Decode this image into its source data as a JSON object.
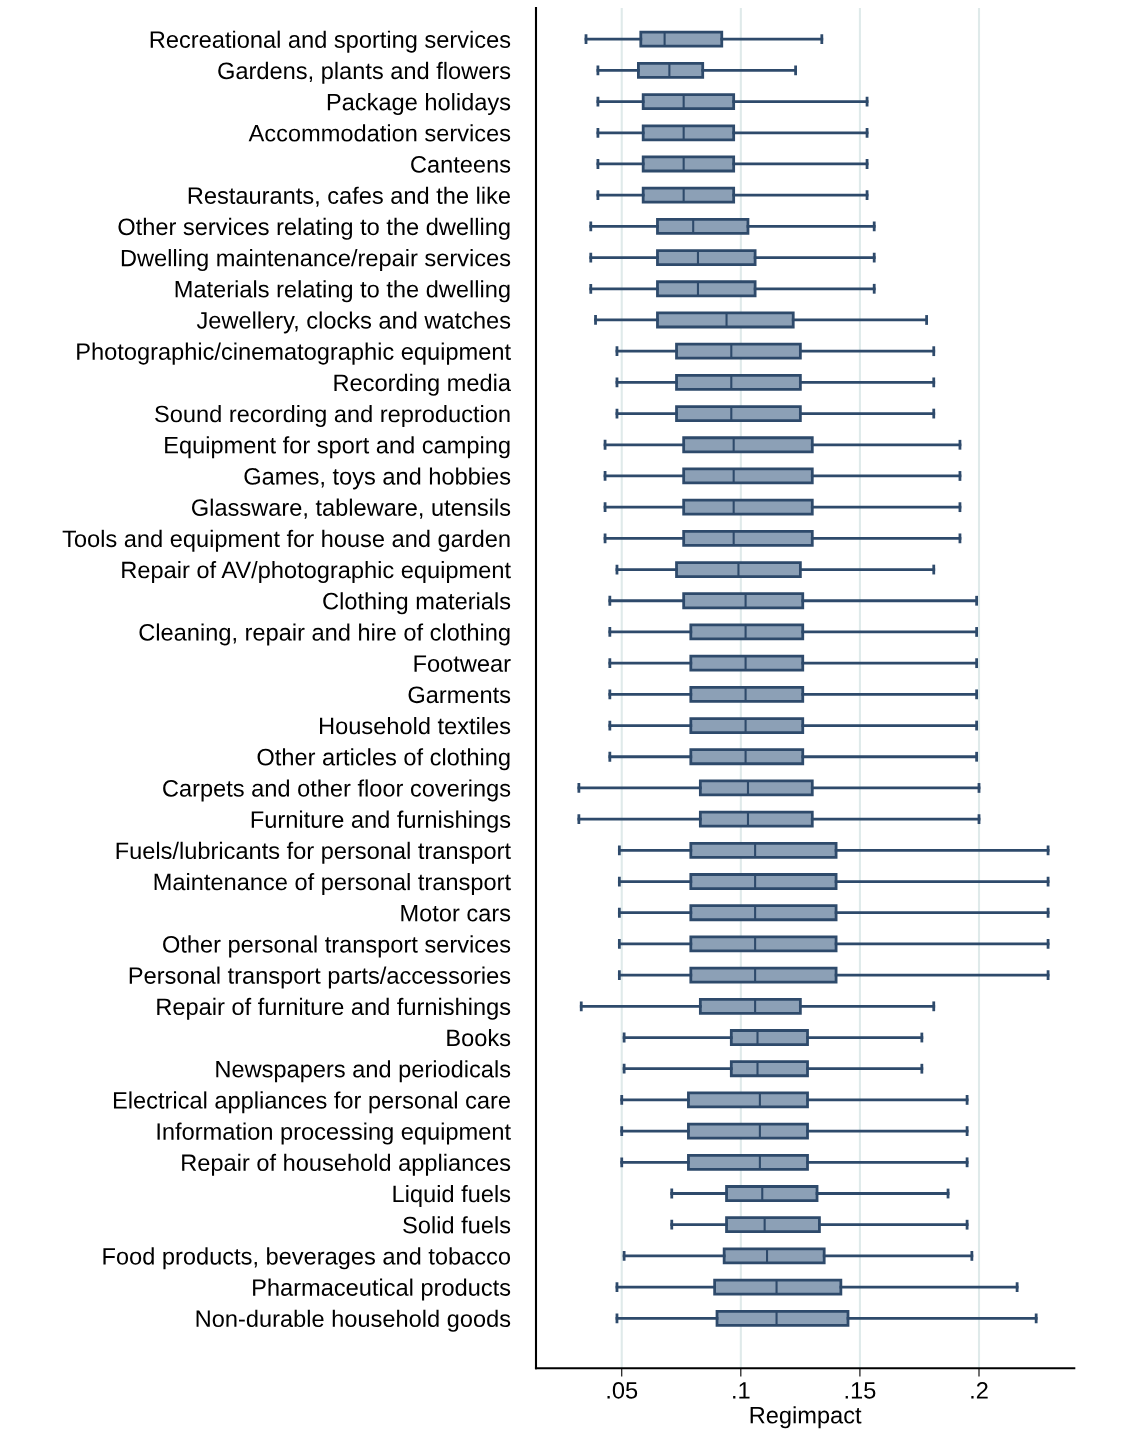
{
  "chart_data": {
    "type": "box",
    "orientation": "horizontal",
    "xlabel": "Regimpact",
    "categories": [
      "Recreational and sporting services",
      "Gardens, plants and flowers",
      "Package holidays",
      "Accommodation services",
      "Canteens",
      "Restaurants, cafes and the like",
      "Other services relating to the dwelling",
      "Dwelling maintenance/repair services",
      "Materials relating to the dwelling",
      "Jewellery, clocks and watches",
      "Photographic/cinematographic equipment",
      "Recording media",
      "Sound recording and reproduction",
      "Equipment for sport and camping",
      "Games, toys and hobbies",
      "Glassware, tableware, utensils",
      "Tools and equipment for house and garden",
      "Repair of AV/photographic equipment",
      "Clothing materials",
      "Cleaning, repair and hire of clothing",
      "Footwear",
      "Garments",
      "Household textiles",
      "Other articles of clothing",
      "Carpets and other floor coverings",
      "Furniture and furnishings",
      "Fuels/lubricants for personal transport",
      "Maintenance of personal transport",
      "Motor cars",
      "Other personal transport services",
      "Personal transport parts/accessories",
      "Repair of furniture and furnishings",
      "Books",
      "Newspapers and periodicals",
      "Electrical appliances for personal care",
      "Information processing equipment",
      "Repair of household appliances",
      "Liquid fuels",
      "Solid fuels",
      "Food products, beverages and tobacco",
      "Pharmaceutical products",
      "Non-durable household goods"
    ],
    "boxes": [
      {
        "low": 0.035,
        "q1": 0.058,
        "median": 0.068,
        "q3": 0.092,
        "high": 0.134
      },
      {
        "low": 0.04,
        "q1": 0.057,
        "median": 0.07,
        "q3": 0.084,
        "high": 0.123
      },
      {
        "low": 0.04,
        "q1": 0.059,
        "median": 0.076,
        "q3": 0.097,
        "high": 0.153
      },
      {
        "low": 0.04,
        "q1": 0.059,
        "median": 0.076,
        "q3": 0.097,
        "high": 0.153
      },
      {
        "low": 0.04,
        "q1": 0.059,
        "median": 0.076,
        "q3": 0.097,
        "high": 0.153
      },
      {
        "low": 0.04,
        "q1": 0.059,
        "median": 0.076,
        "q3": 0.097,
        "high": 0.153
      },
      {
        "low": 0.037,
        "q1": 0.065,
        "median": 0.08,
        "q3": 0.103,
        "high": 0.156
      },
      {
        "low": 0.037,
        "q1": 0.065,
        "median": 0.082,
        "q3": 0.106,
        "high": 0.156
      },
      {
        "low": 0.037,
        "q1": 0.065,
        "median": 0.082,
        "q3": 0.106,
        "high": 0.156
      },
      {
        "low": 0.039,
        "q1": 0.065,
        "median": 0.094,
        "q3": 0.122,
        "high": 0.178
      },
      {
        "low": 0.048,
        "q1": 0.073,
        "median": 0.096,
        "q3": 0.125,
        "high": 0.181
      },
      {
        "low": 0.048,
        "q1": 0.073,
        "median": 0.096,
        "q3": 0.125,
        "high": 0.181
      },
      {
        "low": 0.048,
        "q1": 0.073,
        "median": 0.096,
        "q3": 0.125,
        "high": 0.181
      },
      {
        "low": 0.043,
        "q1": 0.076,
        "median": 0.097,
        "q3": 0.13,
        "high": 0.192
      },
      {
        "low": 0.043,
        "q1": 0.076,
        "median": 0.097,
        "q3": 0.13,
        "high": 0.192
      },
      {
        "low": 0.043,
        "q1": 0.076,
        "median": 0.097,
        "q3": 0.13,
        "high": 0.192
      },
      {
        "low": 0.043,
        "q1": 0.076,
        "median": 0.097,
        "q3": 0.13,
        "high": 0.192
      },
      {
        "low": 0.048,
        "q1": 0.073,
        "median": 0.099,
        "q3": 0.125,
        "high": 0.181
      },
      {
        "low": 0.045,
        "q1": 0.076,
        "median": 0.102,
        "q3": 0.126,
        "high": 0.199
      },
      {
        "low": 0.045,
        "q1": 0.079,
        "median": 0.102,
        "q3": 0.126,
        "high": 0.199
      },
      {
        "low": 0.045,
        "q1": 0.079,
        "median": 0.102,
        "q3": 0.126,
        "high": 0.199
      },
      {
        "low": 0.045,
        "q1": 0.079,
        "median": 0.102,
        "q3": 0.126,
        "high": 0.199
      },
      {
        "low": 0.045,
        "q1": 0.079,
        "median": 0.102,
        "q3": 0.126,
        "high": 0.199
      },
      {
        "low": 0.045,
        "q1": 0.079,
        "median": 0.102,
        "q3": 0.126,
        "high": 0.199
      },
      {
        "low": 0.032,
        "q1": 0.083,
        "median": 0.103,
        "q3": 0.13,
        "high": 0.2
      },
      {
        "low": 0.032,
        "q1": 0.083,
        "median": 0.103,
        "q3": 0.13,
        "high": 0.2
      },
      {
        "low": 0.049,
        "q1": 0.079,
        "median": 0.106,
        "q3": 0.14,
        "high": 0.229
      },
      {
        "low": 0.049,
        "q1": 0.079,
        "median": 0.106,
        "q3": 0.14,
        "high": 0.229
      },
      {
        "low": 0.049,
        "q1": 0.079,
        "median": 0.106,
        "q3": 0.14,
        "high": 0.229
      },
      {
        "low": 0.049,
        "q1": 0.079,
        "median": 0.106,
        "q3": 0.14,
        "high": 0.229
      },
      {
        "low": 0.049,
        "q1": 0.079,
        "median": 0.106,
        "q3": 0.14,
        "high": 0.229
      },
      {
        "low": 0.033,
        "q1": 0.083,
        "median": 0.106,
        "q3": 0.125,
        "high": 0.181
      },
      {
        "low": 0.051,
        "q1": 0.096,
        "median": 0.107,
        "q3": 0.128,
        "high": 0.176
      },
      {
        "low": 0.051,
        "q1": 0.096,
        "median": 0.107,
        "q3": 0.128,
        "high": 0.176
      },
      {
        "low": 0.05,
        "q1": 0.078,
        "median": 0.108,
        "q3": 0.128,
        "high": 0.195
      },
      {
        "low": 0.05,
        "q1": 0.078,
        "median": 0.108,
        "q3": 0.128,
        "high": 0.195
      },
      {
        "low": 0.05,
        "q1": 0.078,
        "median": 0.108,
        "q3": 0.128,
        "high": 0.195
      },
      {
        "low": 0.071,
        "q1": 0.094,
        "median": 0.109,
        "q3": 0.132,
        "high": 0.187
      },
      {
        "low": 0.071,
        "q1": 0.094,
        "median": 0.11,
        "q3": 0.133,
        "high": 0.195
      },
      {
        "low": 0.051,
        "q1": 0.093,
        "median": 0.111,
        "q3": 0.135,
        "high": 0.197
      },
      {
        "low": 0.048,
        "q1": 0.089,
        "median": 0.115,
        "q3": 0.142,
        "high": 0.216
      },
      {
        "low": 0.048,
        "q1": 0.09,
        "median": 0.115,
        "q3": 0.145,
        "high": 0.224
      }
    ],
    "color": "#8ca0b6",
    "xlim": [
      0.014,
      0.24
    ],
    "xticks": [
      {
        "value": 0.05,
        "label": ".05"
      },
      {
        "value": 0.1,
        "label": ".1"
      },
      {
        "value": 0.15,
        "label": ".15"
      },
      {
        "value": 0.2,
        "label": ".2"
      }
    ],
    "grid": "x"
  }
}
